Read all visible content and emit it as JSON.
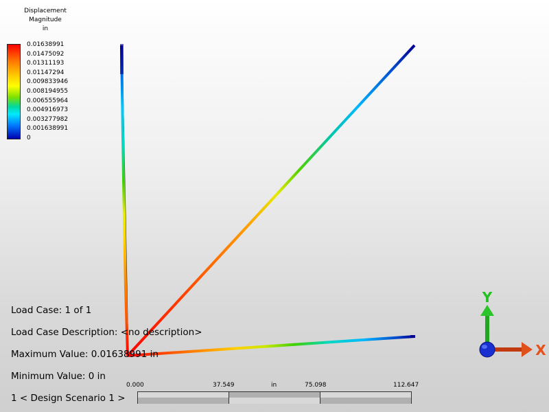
{
  "legend": {
    "title_lines": [
      "Displacement",
      "Magnitude",
      "in"
    ],
    "labels": [
      "0.01638991",
      "0.01475092",
      "0.01311193",
      "0.01147294",
      "0.009833946",
      "0.008194955",
      "0.006555964",
      "0.004916973",
      "0.003277982",
      "0.001638991",
      "0"
    ]
  },
  "info": {
    "load_case": "Load Case:  1 of 1",
    "load_case_description": "Load Case Description:  <no description>",
    "maximum_value": "Maximum Value: 0.01638991 in",
    "minimum_value": "Minimum Value: 0 in",
    "design_scenario": "1 < Design Scenario 1 >"
  },
  "scale": {
    "labels": [
      "0.000",
      "37.549",
      "in",
      "75.098",
      "112.647"
    ]
  },
  "triad": {
    "x_label": "X",
    "y_label": "Y",
    "x_color": "#e8501a",
    "y_color": "#22c022",
    "origin_color": "#1a2fd0"
  },
  "colors": {
    "max": "#ff0000",
    "min": "#0000b0"
  }
}
